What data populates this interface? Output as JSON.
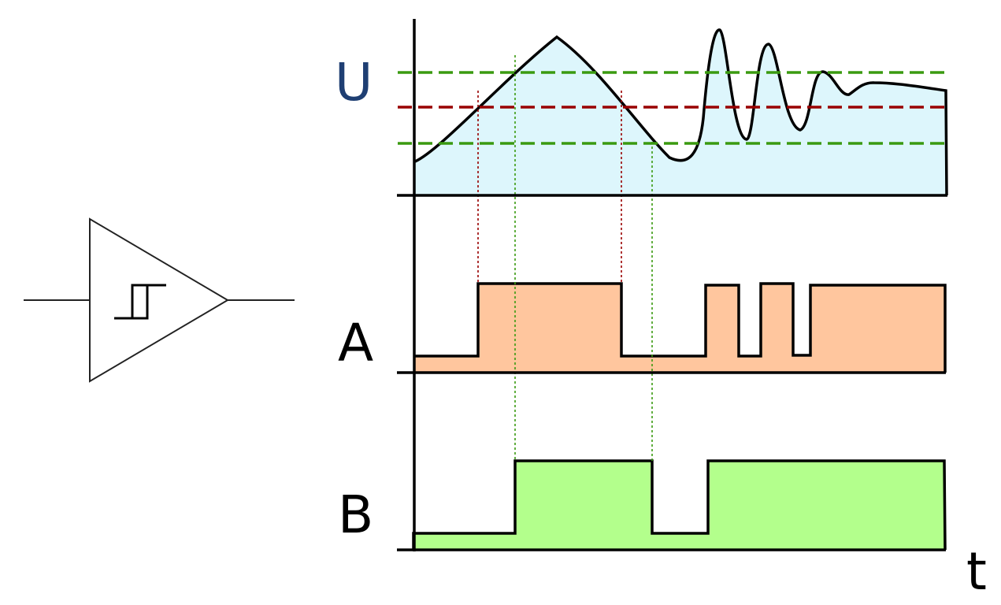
{
  "labels": {
    "signal_u": "U",
    "signal_a": "A",
    "signal_b": "B",
    "time_axis": "t"
  },
  "colors": {
    "u_fill": "#ddf6fc",
    "a_fill": "#ffc69e",
    "b_fill": "#b3ff8c",
    "threshold_outer": "#3a9a10",
    "threshold_middle": "#990000",
    "u_label": "#1f3f73",
    "stroke": "#000000"
  },
  "symbol": "schmitt-trigger-buffer"
}
